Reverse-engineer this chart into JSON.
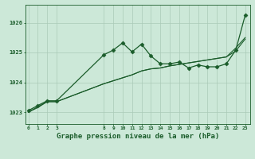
{
  "background_color": "#cce8d8",
  "plot_bg_color": "#cce8d8",
  "line_color": "#1a5c2a",
  "grid_color": "#aacab8",
  "title": "Graphe pression niveau de la mer (hPa)",
  "title_color": "#1a5c2a",
  "title_fontsize": 6.5,
  "ylabel_ticks": [
    1023,
    1024,
    1025,
    1026
  ],
  "x_ticks": [
    0,
    1,
    2,
    3,
    8,
    9,
    10,
    11,
    12,
    13,
    14,
    15,
    16,
    17,
    18,
    19,
    20,
    21,
    22,
    23
  ],
  "xlim": [
    -0.3,
    23.5
  ],
  "ylim": [
    1022.6,
    1026.6
  ],
  "line1_x": [
    0,
    1,
    2,
    3,
    8,
    9,
    10,
    11,
    12,
    13,
    14,
    15,
    16,
    17,
    18,
    19,
    20,
    21,
    22,
    23
  ],
  "line1_y": [
    1023.0,
    1023.18,
    1023.35,
    1023.35,
    1023.95,
    1024.05,
    1024.15,
    1024.25,
    1024.38,
    1024.45,
    1024.48,
    1024.55,
    1024.6,
    1024.65,
    1024.7,
    1024.75,
    1024.8,
    1024.85,
    1025.15,
    1025.5
  ],
  "line2_x": [
    0,
    1,
    2,
    3,
    8,
    9,
    10,
    11,
    12,
    13,
    14,
    15,
    16,
    17,
    18,
    19,
    20,
    21,
    22,
    23
  ],
  "line2_y": [
    1023.05,
    1023.22,
    1023.38,
    1023.38,
    1024.92,
    1025.08,
    1025.32,
    1025.02,
    1025.28,
    1024.88,
    1024.62,
    1024.62,
    1024.68,
    1024.48,
    1024.58,
    1024.52,
    1024.52,
    1024.62,
    1025.08,
    1026.25
  ],
  "line3_x": [
    0,
    1,
    2,
    3,
    8,
    9,
    10,
    11,
    12,
    13,
    14,
    15,
    16,
    17,
    18,
    19,
    20,
    21,
    22,
    23
  ],
  "line3_y": [
    1023.0,
    1023.15,
    1023.35,
    1023.35,
    1023.95,
    1024.05,
    1024.15,
    1024.25,
    1024.38,
    1024.45,
    1024.48,
    1024.55,
    1024.6,
    1024.65,
    1024.7,
    1024.75,
    1024.8,
    1024.85,
    1025.05,
    1025.45
  ]
}
